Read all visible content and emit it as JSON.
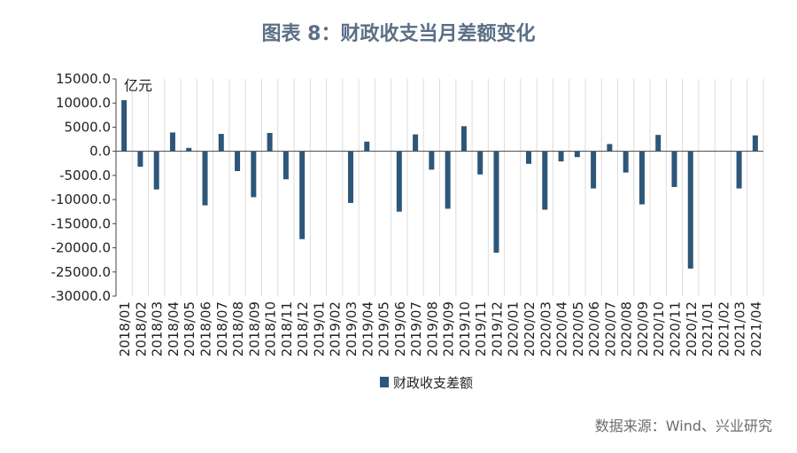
{
  "chart_data": {
    "type": "bar",
    "title": "图表 8：财政收支当月差额变化",
    "ylabel": "亿元",
    "xlabel": "",
    "ylim": [
      -30000,
      15000
    ],
    "ytick_step": 5000,
    "ytick_labels": [
      "15000.0",
      "10000.0",
      "5000.0",
      "0.0",
      "-5000.0",
      "-10000.0",
      "-15000.0",
      "-20000.0",
      "-25000.0",
      "-30000.0"
    ],
    "grid": true,
    "legend": "bottom-center",
    "bar_color": "#2e5679",
    "categories": [
      "2018/01",
      "2018/02",
      "2018/03",
      "2018/04",
      "2018/05",
      "2018/06",
      "2018/07",
      "2018/08",
      "2018/09",
      "2018/10",
      "2018/11",
      "2018/12",
      "2019/01",
      "2019/02",
      "2019/03",
      "2019/04",
      "2019/05",
      "2019/06",
      "2019/07",
      "2019/08",
      "2019/09",
      "2019/10",
      "2019/11",
      "2019/12",
      "2020/01",
      "2020/02",
      "2020/03",
      "2020/04",
      "2020/05",
      "2020/06",
      "2020/07",
      "2020/08",
      "2020/09",
      "2020/10",
      "2020/11",
      "2020/12",
      "2021/01",
      "2021/02",
      "2021/03",
      "2021/04"
    ],
    "series": [
      {
        "name": "财政收支差额",
        "values": [
          10600,
          -3200,
          -7900,
          3900,
          700,
          -11200,
          3600,
          -4100,
          -9500,
          3800,
          -5800,
          -18200,
          0,
          0,
          -10700,
          2000,
          0,
          -12500,
          3500,
          -3800,
          -11900,
          5200,
          -4800,
          -21000,
          0,
          -2600,
          -12100,
          -2100,
          -1200,
          -7700,
          1500,
          -4400,
          -11000,
          3400,
          -7400,
          -24300,
          0,
          0,
          -7700,
          3300
        ]
      }
    ]
  },
  "source": "数据来源：Wind、兴业研究"
}
